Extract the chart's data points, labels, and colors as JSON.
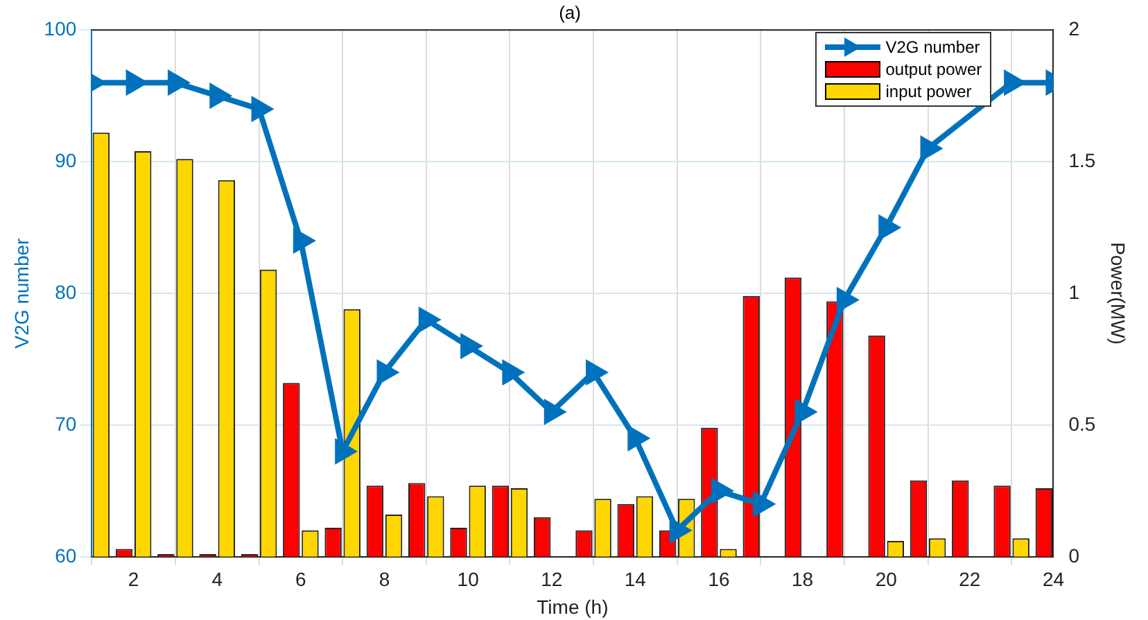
{
  "chart_data": {
    "type": "bar",
    "title": "(a)",
    "xlabel": "Time (h)",
    "ylabel": "V2G number",
    "y2label": "Power(MW)",
    "x": [
      1,
      2,
      3,
      4,
      5,
      6,
      7,
      8,
      9,
      10,
      11,
      12,
      13,
      14,
      15,
      16,
      17,
      18,
      19,
      20,
      21,
      22,
      23,
      24
    ],
    "series": [
      {
        "name": "V2G number",
        "type": "line",
        "color": "#0072bd",
        "values": [
          96,
          96,
          96,
          95,
          94,
          84,
          68,
          74,
          78,
          76,
          74,
          71,
          74,
          69,
          62,
          65,
          64,
          71,
          79.5,
          85,
          91,
          null,
          96,
          96
        ]
      },
      {
        "name": "output power",
        "axis": "y2",
        "color": "#ff0000",
        "values": [
          0,
          0.03,
          0.01,
          0.01,
          0.01,
          0.66,
          0.11,
          0.27,
          0.28,
          0.11,
          0.27,
          0.15,
          0.1,
          0.2,
          0.1,
          0.49,
          0.99,
          1.06,
          0.97,
          0.84,
          0.29,
          0.29,
          0.27,
          0.26
        ]
      },
      {
        "name": "input power",
        "axis": "y2",
        "color": "#ffd700",
        "values": [
          1.61,
          1.54,
          1.51,
          1.43,
          1.09,
          0.1,
          0.94,
          0.16,
          0.23,
          0.27,
          0.26,
          0,
          0.22,
          0.23,
          0.22,
          0.03,
          0,
          0,
          0,
          0.06,
          0.07,
          0,
          0.07,
          0
        ]
      }
    ],
    "xlim": [
      1,
      24
    ],
    "xticks": [
      2,
      4,
      6,
      8,
      10,
      12,
      14,
      16,
      18,
      20,
      22,
      24
    ],
    "ylim": [
      60,
      100
    ],
    "yticks": [
      60,
      70,
      80,
      90,
      100
    ],
    "y2lim": [
      0,
      2
    ],
    "y2ticks": [
      0,
      0.5,
      1,
      1.5,
      2
    ],
    "grid": true,
    "legend": "top right",
    "marker": "triangle",
    "line_style": "solid"
  }
}
